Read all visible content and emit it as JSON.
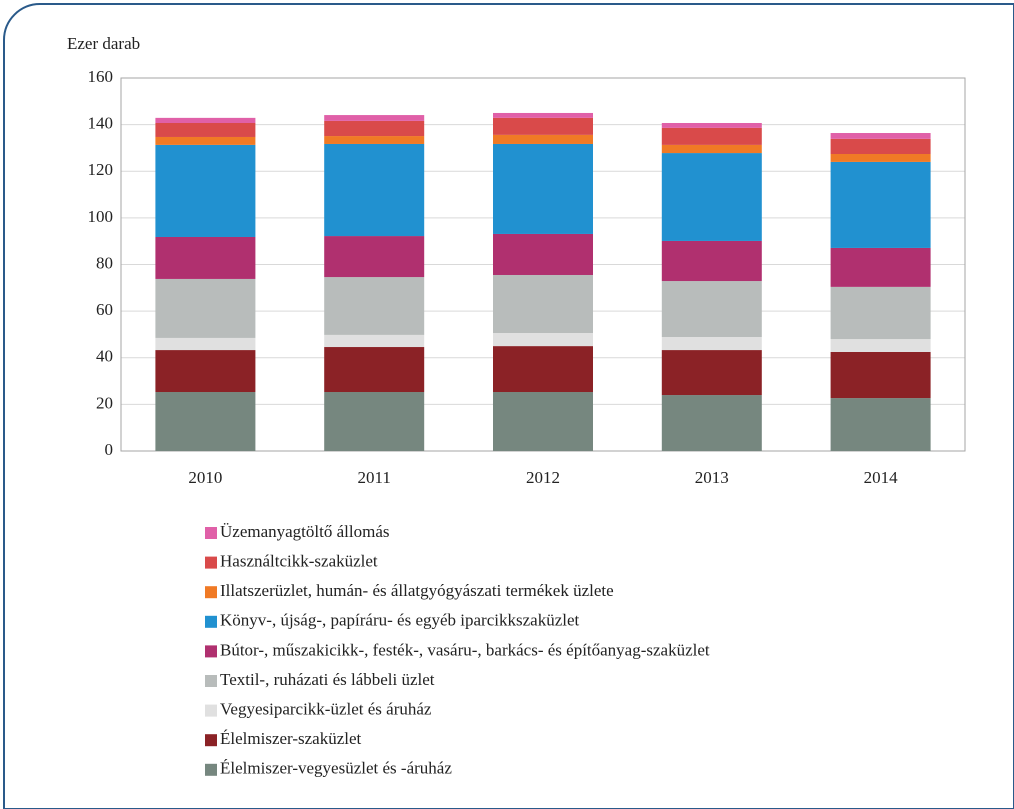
{
  "chart_data": {
    "type": "stacked_bar",
    "y_axis_label": "Ezer darab",
    "categories": [
      "2010",
      "2011",
      "2012",
      "2013",
      "2014"
    ],
    "ylim": [
      0,
      160
    ],
    "yticks": [
      0,
      20,
      40,
      60,
      80,
      100,
      120,
      140,
      160
    ],
    "grid": true,
    "series": [
      {
        "name": "Élelmiszer-vegyesüzlet és -áruház",
        "color": "#76877f",
        "values": [
          25.3,
          25.3,
          25.3,
          24,
          22.7
        ]
      },
      {
        "name": "Élelmiszer-szaküzlet",
        "color": "#8b2226",
        "values": [
          18,
          19.3,
          19.7,
          19.3,
          19.8
        ]
      },
      {
        "name": "Vegyesiparcikk-üzlet és áruház",
        "color": "#e0e0e0",
        "values": [
          5.2,
          5.2,
          5.6,
          5.6,
          5.5
        ]
      },
      {
        "name": "Textil-, ruházati és lábbeli üzlet",
        "color": "#b8bcbb",
        "values": [
          25.3,
          24.8,
          24.9,
          24,
          22.4
        ]
      },
      {
        "name": "Bútor-, műszakicikk-, festék-, vasáru-, barkács- és építőanyag-szaküzlet",
        "color": "#b0306f",
        "values": [
          18,
          17.6,
          17.6,
          17.2,
          16.7
        ]
      },
      {
        "name": "Könyv-, újság-, papíráru- és  egyéb iparcikkszaküzlet",
        "color": "#2191d0",
        "values": [
          39.5,
          39.5,
          38.6,
          37.7,
          36.9
        ]
      },
      {
        "name": "Illatszerüzlet, humán- és állatgyógyászati termékek üzlete",
        "color": "#f07a25",
        "values": [
          3.4,
          3.4,
          3.9,
          3.5,
          3.4
        ]
      },
      {
        "name": "Használtcikk-szaküzlet",
        "color": "#d94a4a",
        "values": [
          6,
          6.5,
          7.3,
          7.3,
          6.5
        ]
      },
      {
        "name": "Üzemanyagtöltő állomás",
        "color": "#e060a8",
        "values": [
          2.2,
          2.5,
          2.1,
          2.1,
          2.5
        ]
      }
    ]
  }
}
